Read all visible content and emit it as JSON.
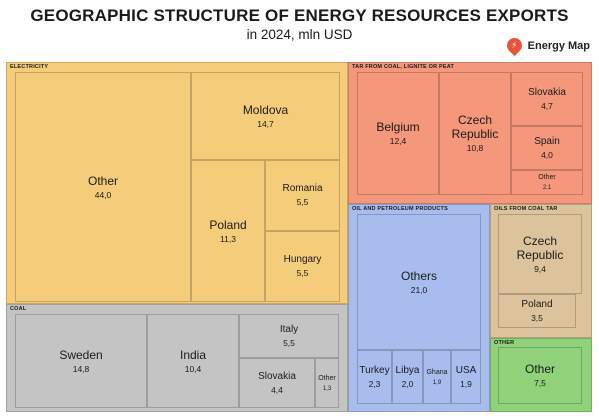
{
  "title": "GEOGRAPHIC STRUCTURE OF ENERGY RESOURCES EXPORTS",
  "subtitle": "in 2024, mln USD",
  "brand": "Energy Map",
  "chart_data": {
    "type": "treemap",
    "groups": [
      {
        "name": "ELECTRICITY",
        "color": "#f5cd7a",
        "items": [
          {
            "name": "Other",
            "value": 44.0,
            "label": "44,0"
          },
          {
            "name": "Moldova",
            "value": 14.7,
            "label": "14,7"
          },
          {
            "name": "Poland",
            "value": 11.3,
            "label": "11,3"
          },
          {
            "name": "Romania",
            "value": 5.5,
            "label": "5,5"
          },
          {
            "name": "Hungary",
            "value": 5.5,
            "label": "5,5"
          }
        ]
      },
      {
        "name": "TAR FROM COAL, LIGNITE OR PEAT",
        "color": "#f4977a",
        "items": [
          {
            "name": "Belgium",
            "value": 12.4,
            "label": "12,4"
          },
          {
            "name": "Czech Republic",
            "value": 10.8,
            "label": "10,8"
          },
          {
            "name": "Slovakia",
            "value": 4.7,
            "label": "4,7"
          },
          {
            "name": "Spain",
            "value": 4.0,
            "label": "4,0"
          },
          {
            "name": "Other",
            "value": 2.1,
            "label": "2,1"
          }
        ]
      },
      {
        "name": "COAL",
        "color": "#c4c4c4",
        "items": [
          {
            "name": "Sweden",
            "value": 14.8,
            "label": "14,8"
          },
          {
            "name": "India",
            "value": 10.4,
            "label": "10,4"
          },
          {
            "name": "Italy",
            "value": 5.5,
            "label": "5,5"
          },
          {
            "name": "Slovakia",
            "value": 4.4,
            "label": "4,4"
          },
          {
            "name": "Other",
            "value": 1.3,
            "label": "1,3"
          }
        ]
      },
      {
        "name": "OIL AND PETROLEUM PRODUCTS",
        "color": "#a9bcee",
        "items": [
          {
            "name": "Others",
            "value": 21.0,
            "label": "21,0"
          },
          {
            "name": "Turkey",
            "value": 2.3,
            "label": "2,3"
          },
          {
            "name": "Libya",
            "value": 2.0,
            "label": "2,0"
          },
          {
            "name": "Ghana",
            "value": 1.9,
            "label": "1,9"
          },
          {
            "name": "USA",
            "value": 1.9,
            "label": "1,9"
          }
        ]
      },
      {
        "name": "OILS FROM COAL TAR",
        "color": "#dcc39c",
        "items": [
          {
            "name": "Czech Republic",
            "value": 9.4,
            "label": "9,4"
          },
          {
            "name": "Poland",
            "value": 3.5,
            "label": "3,5"
          }
        ]
      },
      {
        "name": "OTHER",
        "color": "#8fd27a",
        "items": [
          {
            "name": "Other",
            "value": 7.5,
            "label": "7,5"
          }
        ]
      }
    ]
  }
}
